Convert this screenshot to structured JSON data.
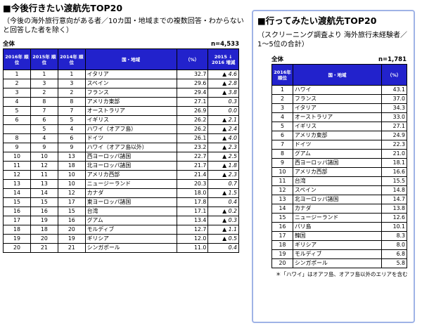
{
  "left": {
    "title": "■今後行きたい渡航先TOP20",
    "note": "（今後の海外旅行意向がある者／10カ国・地域までの複数回答・わからないと回答した者を除く）",
    "total_label": "全体",
    "n_label": "n=4,533",
    "headers": {
      "rank2016": "2016年 順位",
      "rank2015": "2015年 順位",
      "rank2014": "2014年 順位",
      "country": "国・地域",
      "pct": "（%）",
      "change": "2015 ↓ 2016 増減"
    },
    "rows": [
      {
        "r16": "1",
        "r15": "1",
        "r14": "1",
        "name": "イタリア",
        "pct": "32.7",
        "chg": "▲ 4.6"
      },
      {
        "r16": "2",
        "r15": "3",
        "r14": "3",
        "name": "スペイン",
        "pct": "29.6",
        "chg": "▲ 2.8"
      },
      {
        "r16": "3",
        "r15": "2",
        "r14": "2",
        "name": "フランス",
        "pct": "29.4",
        "chg": "▲ 3.8"
      },
      {
        "r16": "4",
        "r15": "8",
        "r14": "8",
        "name": "アメリカ東部",
        "pct": "27.1",
        "chg": "0.3"
      },
      {
        "r16": "5",
        "r15": "7",
        "r14": "7",
        "name": "オーストラリア",
        "pct": "26.9",
        "chg": "0.0"
      },
      {
        "r16": "6",
        "r15": "6",
        "r14": "5",
        "name": "イギリス",
        "pct": "26.2",
        "chg": "▲ 2.1"
      },
      {
        "r16": "",
        "r15": "5",
        "r14": "4",
        "name": "ハワイ（オアフ島）",
        "pct": "26.2",
        "chg": "▲ 2.4"
      },
      {
        "r16": "8",
        "r15": "4",
        "r14": "6",
        "name": "ドイツ",
        "pct": "26.1",
        "chg": "▲ 4.0"
      },
      {
        "r16": "9",
        "r15": "9",
        "r14": "9",
        "name": "ハワイ（オアフ島以外）",
        "pct": "23.2",
        "chg": "▲ 2.3"
      },
      {
        "r16": "10",
        "r15": "10",
        "r14": "13",
        "name": "西ヨーロッパ諸国",
        "pct": "22.7",
        "chg": "▲ 2.5"
      },
      {
        "r16": "11",
        "r15": "12",
        "r14": "18",
        "name": "北ヨーロッパ諸国",
        "pct": "21.7",
        "chg": "▲ 1.8"
      },
      {
        "r16": "12",
        "r15": "11",
        "r14": "10",
        "name": "アメリカ西部",
        "pct": "21.4",
        "chg": "▲ 2.3"
      },
      {
        "r16": "13",
        "r15": "13",
        "r14": "10",
        "name": "ニュージーランド",
        "pct": "20.3",
        "chg": "0.7"
      },
      {
        "r16": "14",
        "r15": "14",
        "r14": "12",
        "name": "カナダ",
        "pct": "18.0",
        "chg": "▲ 1.5"
      },
      {
        "r16": "15",
        "r15": "15",
        "r14": "17",
        "name": "東ヨーロッパ諸国",
        "pct": "17.8",
        "chg": "0.4"
      },
      {
        "r16": "16",
        "r15": "16",
        "r14": "15",
        "name": "台湾",
        "pct": "17.1",
        "chg": "▲ 0.2"
      },
      {
        "r16": "17",
        "r15": "19",
        "r14": "16",
        "name": "グアム",
        "pct": "13.4",
        "chg": "▲ 0.3"
      },
      {
        "r16": "18",
        "r15": "18",
        "r14": "20",
        "name": "モルディブ",
        "pct": "12.7",
        "chg": "▲ 1.1"
      },
      {
        "r16": "19",
        "r15": "20",
        "r14": "19",
        "name": "ギリシア",
        "pct": "12.0",
        "chg": "▲ 0.5"
      },
      {
        "r16": "20",
        "r15": "21",
        "r14": "21",
        "name": "シンガポール",
        "pct": "11.0",
        "chg": "0.4"
      }
    ]
  },
  "right": {
    "title": "■行ってみたい渡航先TOP20",
    "note": "（スクリーニング調査より 海外旅行未経験者／1～5位の合計）",
    "total_label": "全体",
    "n_label": "n=1,781",
    "headers": {
      "rank2016": "2016年 順位",
      "country": "国・地域",
      "pct": "（%）"
    },
    "rows": [
      {
        "r": "1",
        "name": "ハワイ",
        "pct": "43.1"
      },
      {
        "r": "2",
        "name": "フランス",
        "pct": "37.0"
      },
      {
        "r": "3",
        "name": "イタリア",
        "pct": "34.3"
      },
      {
        "r": "4",
        "name": "オーストラリア",
        "pct": "33.0"
      },
      {
        "r": "5",
        "name": "イギリス",
        "pct": "27.1"
      },
      {
        "r": "6",
        "name": "アメリカ東部",
        "pct": "24.9"
      },
      {
        "r": "7",
        "name": "ドイツ",
        "pct": "22.3"
      },
      {
        "r": "8",
        "name": "グアム",
        "pct": "21.0"
      },
      {
        "r": "9",
        "name": "西ヨーロッパ諸国",
        "pct": "18.1"
      },
      {
        "r": "10",
        "name": "アメリカ西部",
        "pct": "16.6"
      },
      {
        "r": "11",
        "name": "台湾",
        "pct": "15.5"
      },
      {
        "r": "12",
        "name": "スペイン",
        "pct": "14.8"
      },
      {
        "r": "13",
        "name": "北ヨーロッパ諸国",
        "pct": "14.7"
      },
      {
        "r": "14",
        "name": "カナダ",
        "pct": "13.8"
      },
      {
        "r": "15",
        "name": "ニュージーランド",
        "pct": "12.6"
      },
      {
        "r": "16",
        "name": "パリ島",
        "pct": "10.1"
      },
      {
        "r": "17",
        "name": "韓国",
        "pct": "8.3"
      },
      {
        "r": "18",
        "name": "ギリシア",
        "pct": "8.0"
      },
      {
        "r": "19",
        "name": "モルディブ",
        "pct": "6.8"
      },
      {
        "r": "20",
        "name": "シンガポール",
        "pct": "5.8"
      }
    ],
    "footnote": "＊「ハワイ」はオアフ島、オアフ島以外のエリアを含む"
  },
  "colors": {
    "header_bg": "#2222cc",
    "header_text": "#ffffff",
    "panel_border": "#9fb3e6"
  }
}
